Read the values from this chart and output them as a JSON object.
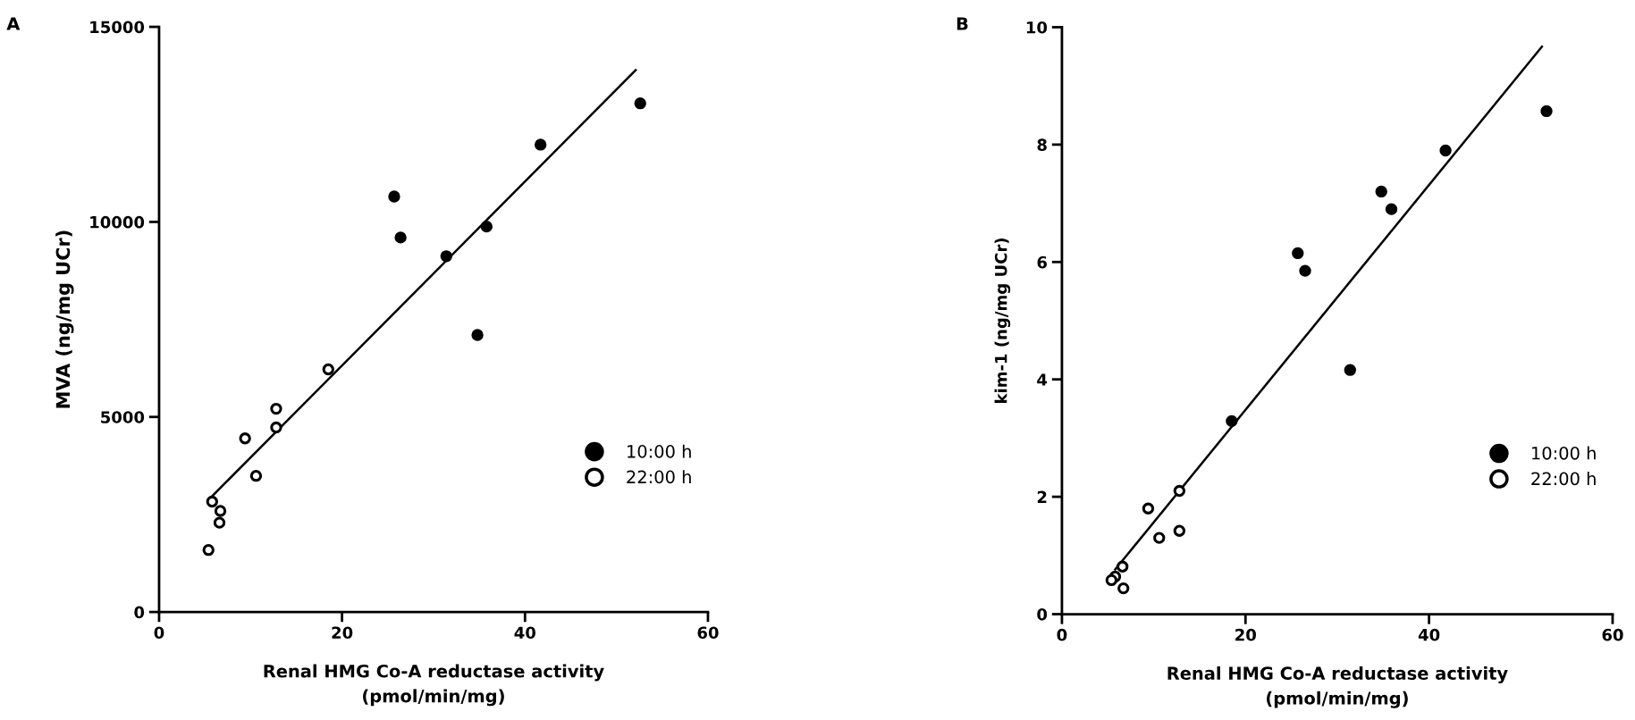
{
  "chart_data": [
    {
      "type": "scatter",
      "title": "A",
      "xlabel": "Renal HMG Co-A reductase activity\n(pmol/min/mg)",
      "ylabel": "MVA (ng/mg UCr)",
      "xlim": [
        0,
        60
      ],
      "xticks": [
        0,
        20,
        40,
        60
      ],
      "ylim": [
        0,
        15000
      ],
      "yticks": [
        0,
        5000,
        10000,
        15000
      ],
      "grid": false,
      "legend": "right",
      "series": [
        {
          "name": "10:00 h",
          "color": "#000000",
          "marker": "circle",
          "x": [
            25.7,
            26.4,
            31.4,
            35.8,
            34.8,
            41.7,
            52.6
          ],
          "values": [
            10650,
            9600,
            9120,
            9880,
            7100,
            11980,
            13040
          ]
        },
        {
          "name": "22:00 h",
          "color": "#ffffff",
          "marker": "circle",
          "x": [
            18.5,
            12.8,
            12.8,
            9.4,
            10.6,
            5.8,
            6.7,
            6.6,
            5.4
          ],
          "values": [
            6220,
            5210,
            4730,
            4450,
            3490,
            2830,
            2590,
            2290,
            1590
          ]
        },
        {
          "type": "line",
          "color": "#000000",
          "marker": "none",
          "x": [
            5.8,
            52.1
          ],
          "values": [
            2970,
            13890
          ]
        }
      ]
    },
    {
      "type": "scatter",
      "title": "B",
      "xlabel": "Renal HMG Co-A reductase activity\n(pmol/min/mg)",
      "ylabel": "kim-1 (ng/mg UCr)",
      "xlim": [
        0,
        60
      ],
      "xticks": [
        0,
        20,
        40,
        60
      ],
      "ylim": [
        0,
        10
      ],
      "yticks": [
        0,
        2,
        4,
        6,
        8,
        10
      ],
      "grid": false,
      "legend": "right",
      "series": [
        {
          "name": "10:00 h",
          "color": "#000000",
          "marker": "circle",
          "x": [
            52.8,
            41.8,
            34.8,
            35.9,
            25.7,
            26.5,
            31.4,
            18.5
          ],
          "values": [
            8.57,
            7.9,
            7.2,
            6.9,
            6.15,
            5.85,
            4.16,
            3.29
          ]
        },
        {
          "name": "22:00 h",
          "color": "#ffffff",
          "marker": "circle",
          "x": [
            12.8,
            9.4,
            10.6,
            12.8,
            6.6,
            5.8,
            5.4,
            6.7
          ],
          "values": [
            2.1,
            1.8,
            1.3,
            1.42,
            0.81,
            0.64,
            0.58,
            0.44
          ]
        },
        {
          "type": "line",
          "color": "#000000",
          "marker": "none",
          "x": [
            5.8,
            52.3
          ],
          "values": [
            0.76,
            9.67
          ]
        }
      ]
    }
  ]
}
